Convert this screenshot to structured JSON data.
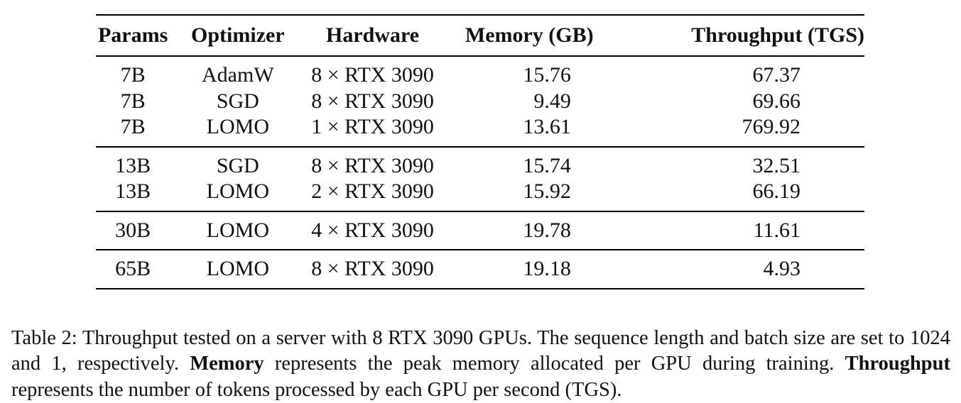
{
  "table": {
    "headers": [
      "Params",
      "Optimizer",
      "Hardware",
      "Memory (GB)",
      "Throughput (TGS)"
    ],
    "groups": [
      [
        {
          "params": "7B",
          "optimizer": "AdamW",
          "hardware": "8 × RTX 3090",
          "memory": "15.76",
          "throughput": "67.37"
        },
        {
          "params": "7B",
          "optimizer": "SGD",
          "hardware": "8 × RTX 3090",
          "memory": "9.49",
          "throughput": "69.66"
        },
        {
          "params": "7B",
          "optimizer": "LOMO",
          "hardware": "1 × RTX 3090",
          "memory": "13.61",
          "throughput": "769.92"
        }
      ],
      [
        {
          "params": "13B",
          "optimizer": "SGD",
          "hardware": "8 × RTX 3090",
          "memory": "15.74",
          "throughput": "32.51"
        },
        {
          "params": "13B",
          "optimizer": "LOMO",
          "hardware": "2 × RTX 3090",
          "memory": "15.92",
          "throughput": "66.19"
        }
      ],
      [
        {
          "params": "30B",
          "optimizer": "LOMO",
          "hardware": "4 × RTX 3090",
          "memory": "19.78",
          "throughput": "11.61"
        }
      ],
      [
        {
          "params": "65B",
          "optimizer": "LOMO",
          "hardware": "8 × RTX 3090",
          "memory": "19.18",
          "throughput": "4.93"
        }
      ]
    ]
  },
  "caption": {
    "part1": "Table 2: Throughput tested on a server with 8 RTX 3090 GPUs. The sequence length and batch size are set to 1024 and 1, respectively. ",
    "bold1": "Memory",
    "part2": " represents the peak memory allocated per GPU during training. ",
    "bold2": "Throughput",
    "part3": " represents the number of tokens processed by each GPU per second (TGS)."
  }
}
